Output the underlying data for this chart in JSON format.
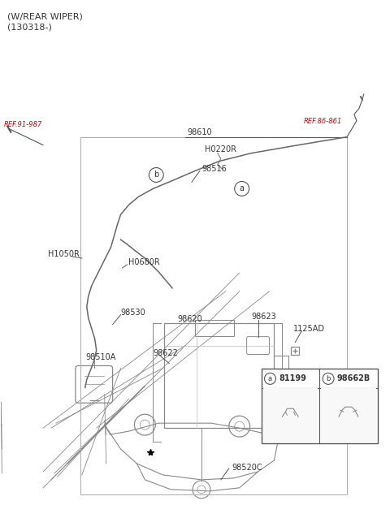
{
  "bg_color": "#ffffff",
  "fig_width": 4.8,
  "fig_height": 6.54,
  "title_line1": "(W/REAR WIPER)",
  "title_line2": "(130318-)",
  "text_color": "#333333",
  "line_color": "#555555",
  "red_color": "#cc0000",
  "gray_color": "#888888",
  "font_size_title": 8,
  "font_size_label": 7,
  "font_size_small": 6,
  "labels": {
    "REF_91_987": "REF.91-987",
    "H0220R": "H0220R",
    "98516": "98516",
    "98610": "98610",
    "REF_86_861": "REF.86-861",
    "H1050R": "H1050R",
    "H0680R": "H0680R",
    "98530": "98530",
    "98510A": "98510A",
    "98620": "98620",
    "98622": "98622",
    "98623": "98623",
    "1125AD": "1125AD",
    "98520C": "98520C",
    "a_label": "a",
    "b_label": "b",
    "box_a_num": "81199",
    "box_a_circle": "a",
    "box_b_num": "98662B",
    "box_b_circle": "b"
  }
}
